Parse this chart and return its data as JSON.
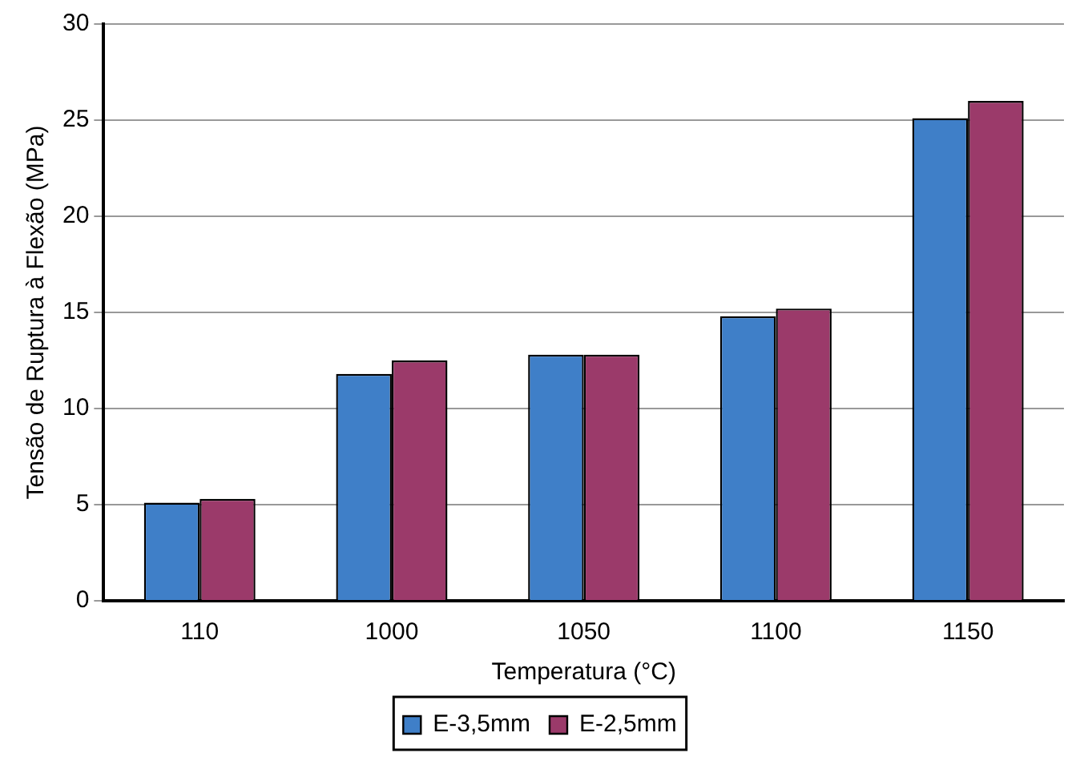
{
  "chart_data": {
    "type": "bar",
    "xlabel": "Temperatura (°C)",
    "ylabel": "Tensão de Ruptura à Flexão (MPa)",
    "categories": [
      "110",
      "1000",
      "1050",
      "1100",
      "1150"
    ],
    "series": [
      {
        "name": "E-3,5mm",
        "color": "#3f7fc8",
        "values": [
          5.1,
          11.8,
          12.8,
          14.8,
          25.1
        ]
      },
      {
        "name": "E-2,5mm",
        "color": "#9b3a6a",
        "values": [
          5.3,
          12.5,
          12.8,
          15.2,
          26.0
        ]
      }
    ],
    "ylim": [
      0,
      30
    ],
    "yticks": [
      0,
      5,
      10,
      15,
      20,
      25,
      30
    ],
    "grid": "y",
    "legend": "bottom"
  }
}
